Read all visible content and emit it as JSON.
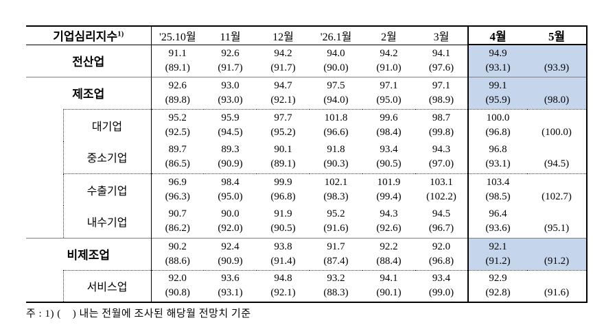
{
  "table": {
    "title": "기업심리지수",
    "title_superscript": "1)",
    "columns": [
      "'25.10월",
      "11월",
      "12월",
      "'26.1월",
      "2월",
      "3월",
      "4월",
      "5월"
    ],
    "rows": [
      {
        "key": "all-industries",
        "label": "전산업",
        "level": "group",
        "highlight": true,
        "separator": "none",
        "values": [
          "91.1",
          "92.6",
          "94.2",
          "94.0",
          "94.2",
          "94.1",
          "94.9",
          ""
        ],
        "forecasts": [
          "(89.1)",
          "(91.7)",
          "(91.7)",
          "(90.0)",
          "(91.0)",
          "(97.6)",
          "(93.1)",
          "(93.9)"
        ]
      },
      {
        "key": "manufacturing",
        "label": "제조업",
        "level": "group",
        "highlight": true,
        "separator": "solid",
        "values": [
          "92.6",
          "93.0",
          "94.7",
          "97.5",
          "97.1",
          "97.1",
          "99.1",
          ""
        ],
        "forecasts": [
          "(89.8)",
          "(93.0)",
          "(92.1)",
          "(94.0)",
          "(95.0)",
          "(98.9)",
          "(95.9)",
          "(98.0)"
        ]
      },
      {
        "key": "large-enterprises",
        "label": "대기업",
        "level": "sub",
        "highlight": false,
        "separator": "dotted",
        "values": [
          "95.2",
          "95.9",
          "97.7",
          "101.8",
          "99.6",
          "98.7",
          "100.0",
          ""
        ],
        "forecasts": [
          "(92.5)",
          "(94.5)",
          "(95.2)",
          "(96.6)",
          "(98.4)",
          "(99.8)",
          "(96.8)",
          "(100.0)"
        ]
      },
      {
        "key": "smes",
        "label": "중소기업",
        "level": "sub",
        "highlight": false,
        "separator": "none",
        "values": [
          "89.7",
          "89.3",
          "90.1",
          "91.8",
          "93.4",
          "94.3",
          "96.8",
          ""
        ],
        "forecasts": [
          "(86.5)",
          "(90.9)",
          "(89.1)",
          "(90.3)",
          "(90.5)",
          "(97.0)",
          "(93.1)",
          "(94.5)"
        ]
      },
      {
        "key": "export-firms",
        "label": "수출기업",
        "level": "sub",
        "highlight": false,
        "separator": "dotted",
        "values": [
          "96.9",
          "98.4",
          "99.9",
          "102.1",
          "101.9",
          "103.1",
          "103.4",
          ""
        ],
        "forecasts": [
          "(96.3)",
          "(95.0)",
          "(96.8)",
          "(98.3)",
          "(99.4)",
          "(102.2)",
          "(98.5)",
          "(102.7)"
        ]
      },
      {
        "key": "domestic-firms",
        "label": "내수기업",
        "level": "sub",
        "highlight": false,
        "separator": "none",
        "values": [
          "90.7",
          "90.0",
          "91.9",
          "95.2",
          "94.3",
          "94.5",
          "96.4",
          ""
        ],
        "forecasts": [
          "(86.2)",
          "(92.0)",
          "(90.5)",
          "(91.6)",
          "(92.6)",
          "(96.7)",
          "(93.6)",
          "(95.1)"
        ]
      },
      {
        "key": "non-manufacturing",
        "label": "비제조업",
        "level": "group",
        "highlight": true,
        "separator": "solid",
        "values": [
          "90.2",
          "92.4",
          "93.8",
          "91.7",
          "92.2",
          "92.0",
          "92.1",
          ""
        ],
        "forecasts": [
          "(88.6)",
          "(90.9)",
          "(91.4)",
          "(87.4)",
          "(88.4)",
          "(96.8)",
          "(91.2)",
          "(91.2)"
        ]
      },
      {
        "key": "services",
        "label": "서비스업",
        "level": "sub",
        "highlight": false,
        "separator": "dotted",
        "values": [
          "92.0",
          "93.6",
          "94.8",
          "93.2",
          "94.1",
          "93.4",
          "92.9",
          ""
        ],
        "forecasts": [
          "(90.8)",
          "(93.1)",
          "(92.1)",
          "(88.3)",
          "(90.1)",
          "(99.0)",
          "(92.8)",
          "(91.6)"
        ]
      }
    ]
  },
  "colors": {
    "highlight": "#c5d5ec"
  },
  "footnote": "주 : 1) (    ) 내는 전월에 조사된 해당월 전망치 기준"
}
